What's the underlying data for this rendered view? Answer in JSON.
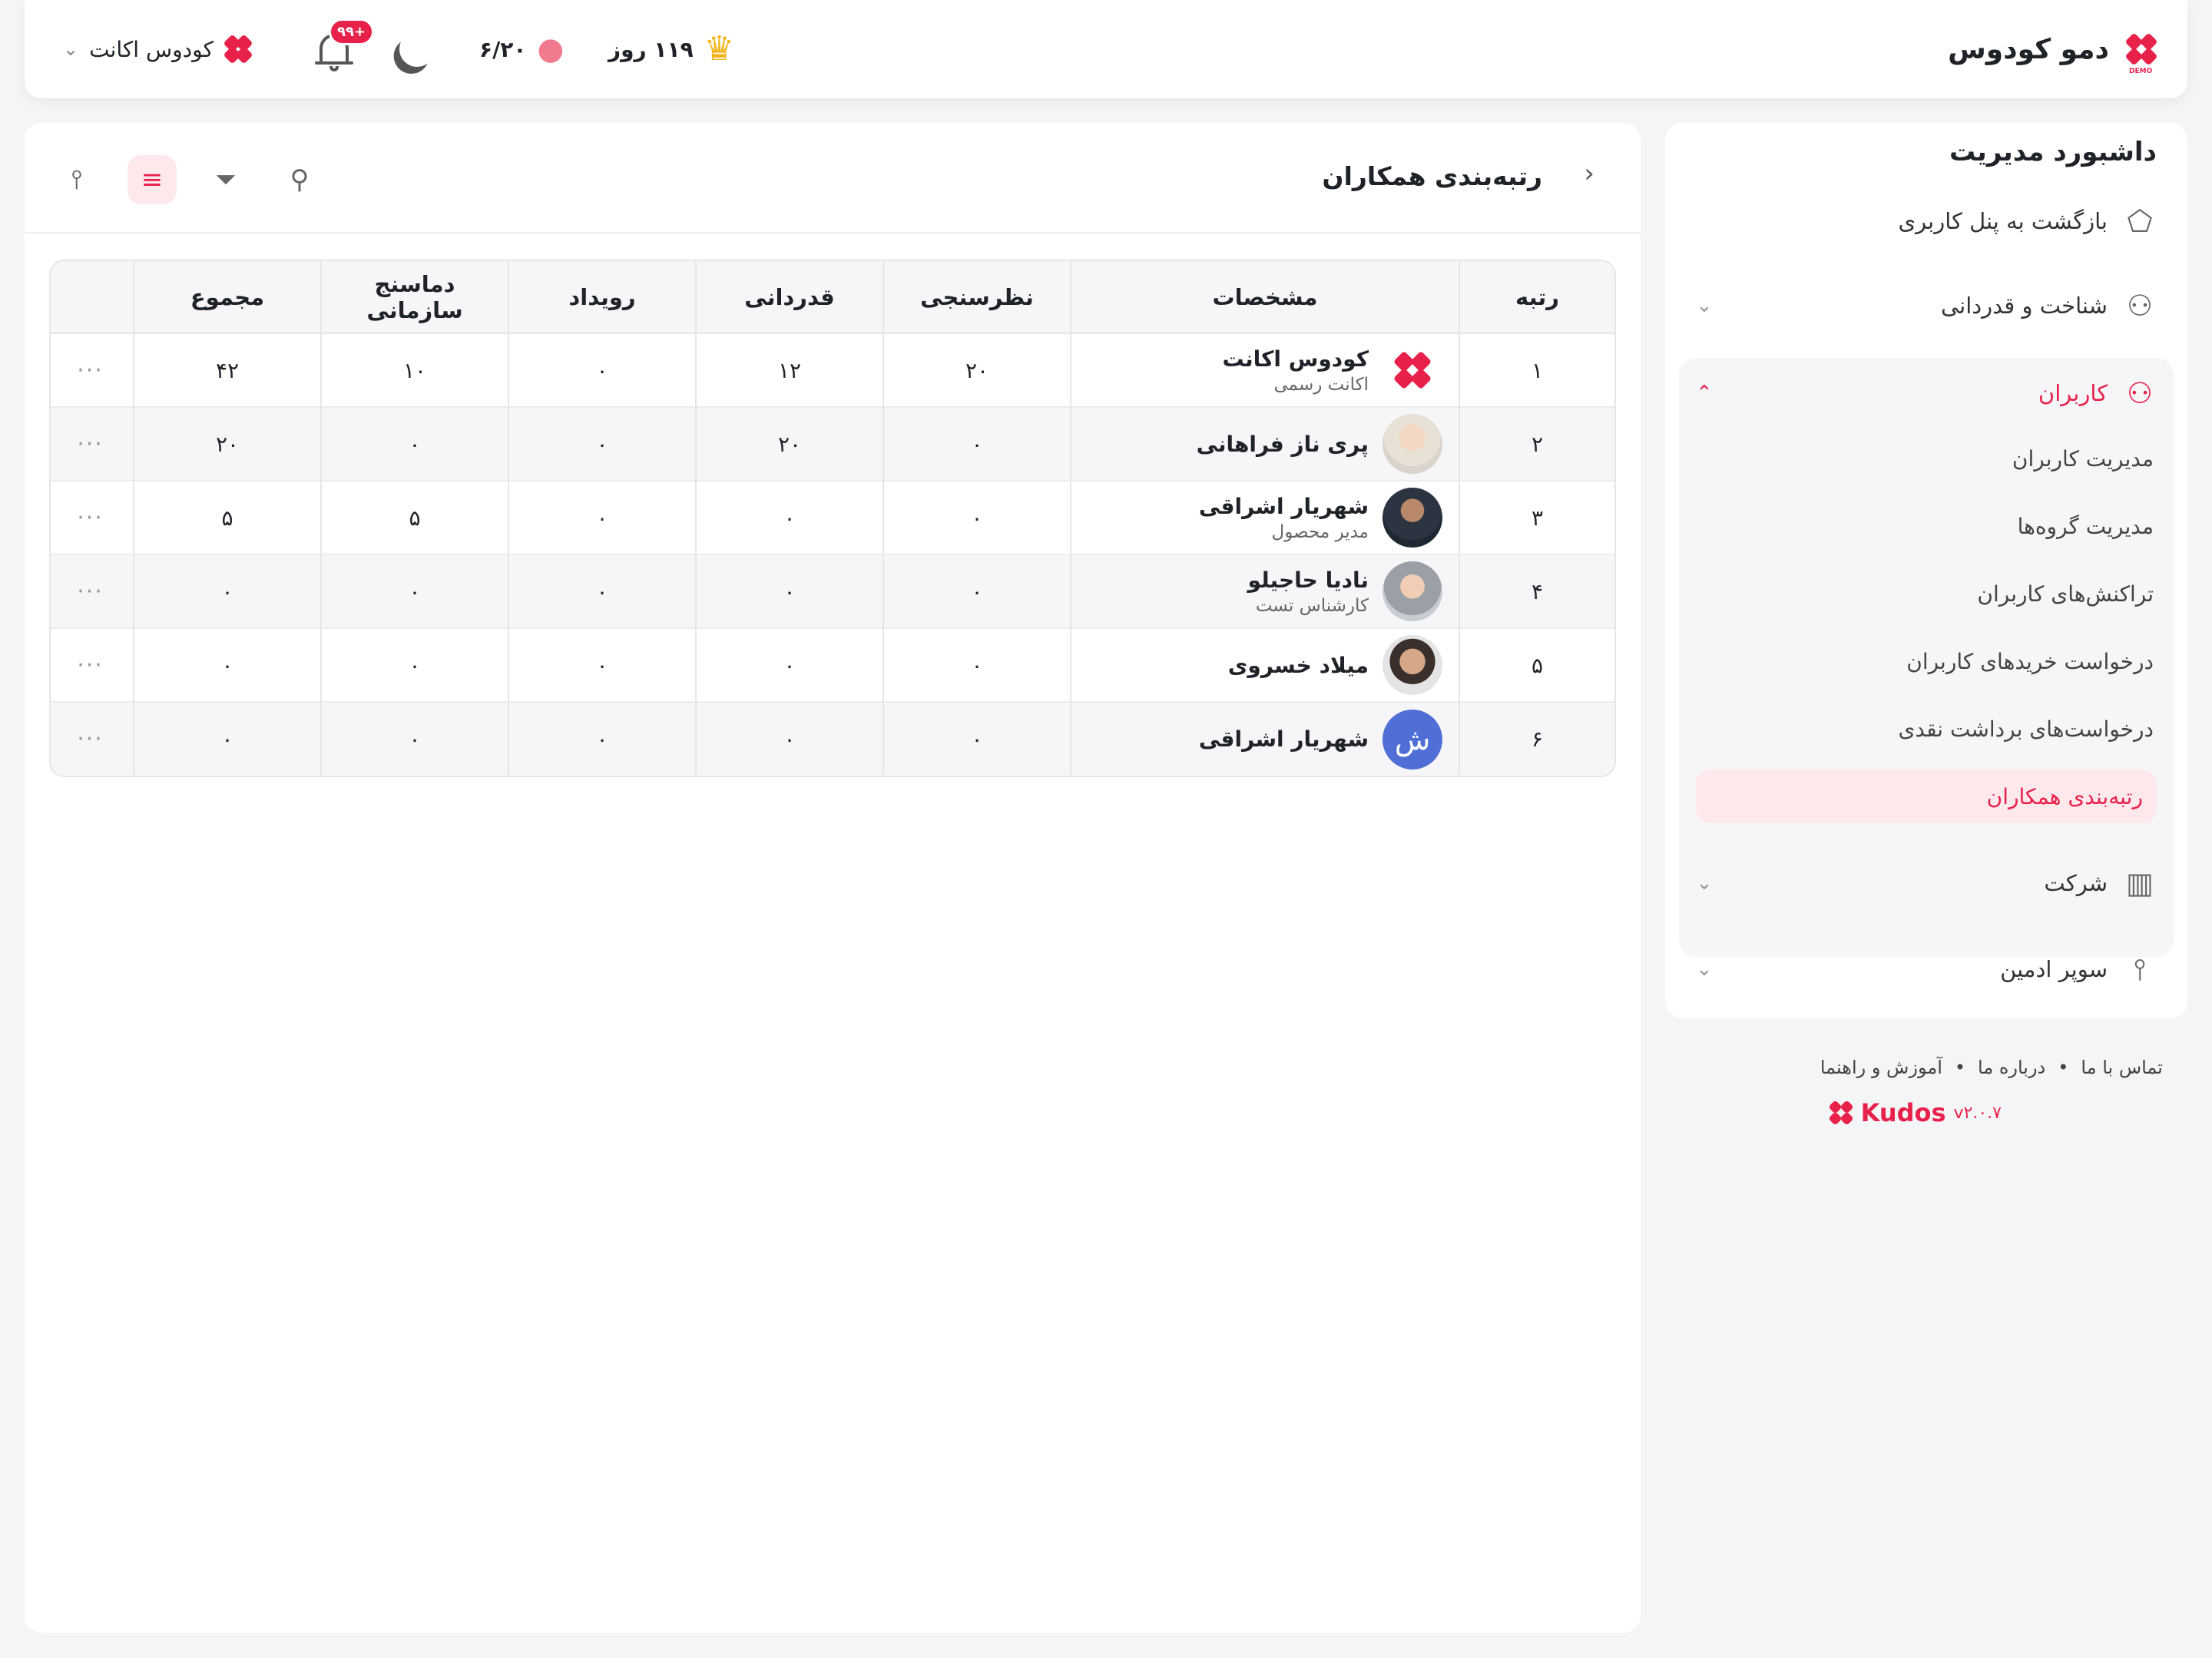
{
  "header": {
    "brand": "دمو کودوس",
    "demo_tag": "DEMO",
    "days": "۱۱۹ روز",
    "coins": "۶/۲۰",
    "notif_badge": "+۹۹",
    "account": "کودوس اکانت"
  },
  "sidebar": {
    "title": "داشبورد مدیریت",
    "back": "بازگشت به پنل کاربری",
    "recognition": "شناخت و قدردانی",
    "users": "کاربران",
    "sub_items": [
      "مدیریت کاربران",
      "مدیریت گروه‌ها",
      "تراکنش‌های کاربران",
      "درخواست خریدهای کاربران",
      "درخواست‌های برداشت نقدی",
      "رتبه‌بندی همکاران"
    ],
    "company": "شرکت",
    "super_admin": "سوپر ادمین"
  },
  "footer": {
    "links": [
      "تماس با ما",
      "درباره ما",
      "آموزش و راهنما"
    ],
    "brand": "Kudos",
    "version": "v۲.۰.۷"
  },
  "page": {
    "title": "رتبه‌بندی همکاران"
  },
  "table": {
    "headers": [
      "رتبه",
      "مشخصات",
      "نظرسنجی",
      "قدردانی",
      "رویداد",
      "دماسنج سازمانی",
      "مجموع"
    ],
    "rows": [
      {
        "rank": "۱",
        "name": "کودوس اکانت",
        "subtitle": "اکانت رسمی",
        "survey": "۲۰",
        "appreciation": "۱۲",
        "event": "۰",
        "thermometer": "۱۰",
        "total": "۴۲",
        "avatar": "logo"
      },
      {
        "rank": "۲",
        "name": "پری ناز فراهانی",
        "subtitle": "",
        "survey": "۰",
        "appreciation": "۲۰",
        "event": "۰",
        "thermometer": "۰",
        "total": "۲۰",
        "avatar": "photo"
      },
      {
        "rank": "۳",
        "name": "شهریار اشراقی",
        "subtitle": "مدیر محصول",
        "survey": "۰",
        "appreciation": "۰",
        "event": "۰",
        "thermometer": "۵",
        "total": "۵",
        "avatar": "photo"
      },
      {
        "rank": "۴",
        "name": "نادیا حاجیلو",
        "subtitle": "کارشناس تست",
        "survey": "۰",
        "appreciation": "۰",
        "event": "۰",
        "thermometer": "۰",
        "total": "۰",
        "avatar": "photo"
      },
      {
        "rank": "۵",
        "name": "میلاد خسروی",
        "subtitle": "",
        "survey": "۰",
        "appreciation": "۰",
        "event": "۰",
        "thermometer": "۰",
        "total": "۰",
        "avatar": "photo"
      },
      {
        "rank": "۶",
        "name": "شهریار اشراقی",
        "subtitle": "",
        "survey": "۰",
        "appreciation": "۰",
        "event": "۰",
        "thermometer": "۰",
        "total": "۰",
        "avatar": "letter",
        "letter": "ش"
      }
    ],
    "more": "···"
  },
  "colors": {
    "accent": "#e8214a",
    "accent_soft": "#fde8ec",
    "avatar_letter_bg": "#4f6fd6"
  }
}
